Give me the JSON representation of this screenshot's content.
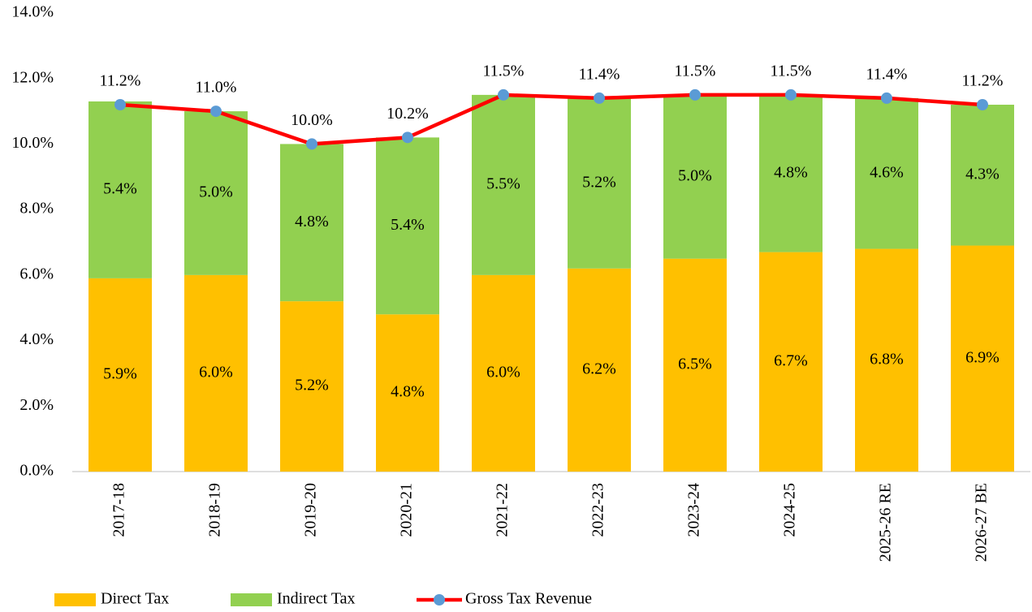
{
  "chart_data": {
    "type": "bar",
    "stacked": true,
    "categories": [
      "2017-18",
      "2018-19",
      "2019-20",
      "2020-21",
      "2021-22",
      "2022-23",
      "2023-24",
      "2024-25",
      "2025-26 RE",
      "2026-27 BE"
    ],
    "series": [
      {
        "name": "Direct Tax",
        "type": "bar",
        "color": "#FFC000",
        "values": [
          5.9,
          6.0,
          5.2,
          4.8,
          6.0,
          6.2,
          6.5,
          6.7,
          6.8,
          6.9
        ],
        "value_labels": [
          "5.9%",
          "6.0%",
          "5.2%",
          "4.8%",
          "6.0%",
          "6.2%",
          "6.5%",
          "6.7%",
          "6.8%",
          "6.9%"
        ]
      },
      {
        "name": "Indirect Tax",
        "type": "bar",
        "color": "#92D050",
        "values": [
          5.4,
          5.0,
          4.8,
          5.4,
          5.5,
          5.2,
          5.0,
          4.8,
          4.6,
          4.3
        ],
        "value_labels": [
          "5.4%",
          "5.0%",
          "4.8%",
          "5.4%",
          "5.5%",
          "5.2%",
          "5.0%",
          "4.8%",
          "4.6%",
          "4.3%"
        ]
      },
      {
        "name": "Gross Tax Revenue",
        "type": "line",
        "color": "#FF0000",
        "marker_color": "#5B9BD5",
        "values": [
          11.2,
          11.0,
          10.0,
          10.2,
          11.5,
          11.4,
          11.5,
          11.5,
          11.4,
          11.2
        ],
        "value_labels": [
          "11.2%",
          "11.0%",
          "10.0%",
          "10.2%",
          "11.5%",
          "11.4%",
          "11.5%",
          "11.5%",
          "11.4%",
          "11.2%"
        ]
      }
    ],
    "ylim": [
      0,
      14
    ],
    "yticks": [
      {
        "value": 0,
        "label": "0.0%"
      },
      {
        "value": 2,
        "label": "2.0%"
      },
      {
        "value": 4,
        "label": "4.0%"
      },
      {
        "value": 6,
        "label": "6.0%"
      },
      {
        "value": 8,
        "label": "8.0%"
      },
      {
        "value": 10,
        "label": "10.0%"
      },
      {
        "value": 12,
        "label": "12.0%"
      },
      {
        "value": 14,
        "label": "14.0%"
      }
    ],
    "grid": false,
    "legend": "bottom"
  }
}
